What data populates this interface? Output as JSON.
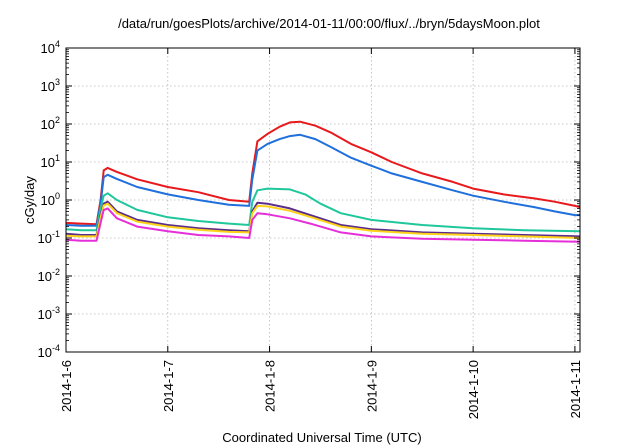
{
  "chart_data": {
    "type": "line",
    "title": "/data/run/goesPlots/archive/2014-01-11/00:00/flux/../bryn/5daysMoon.plot",
    "xlabel": "Coordinated Universal Time (UTC)",
    "ylabel": "cGy/day",
    "y_scale": "log",
    "ylim": [
      0.0001,
      10000
    ],
    "xlim": [
      0,
      5.05
    ],
    "x_ticks": [
      {
        "value": 0,
        "label": "2014-1-6"
      },
      {
        "value": 1,
        "label": "2014-1-7"
      },
      {
        "value": 2,
        "label": "2014-1-8"
      },
      {
        "value": 3,
        "label": "2014-1-9"
      },
      {
        "value": 4,
        "label": "2014-1-10"
      },
      {
        "value": 5,
        "label": "2014-1-11"
      }
    ],
    "y_ticks": [
      {
        "value": 0.0001,
        "base": "10",
        "exp": "-4"
      },
      {
        "value": 0.001,
        "base": "10",
        "exp": "-3"
      },
      {
        "value": 0.01,
        "base": "10",
        "exp": "-2"
      },
      {
        "value": 0.1,
        "base": "10",
        "exp": "-1"
      },
      {
        "value": 1,
        "base": "10",
        "exp": "0"
      },
      {
        "value": 10,
        "base": "10",
        "exp": "1"
      },
      {
        "value": 100,
        "base": "10",
        "exp": "2"
      },
      {
        "value": 1000,
        "base": "10",
        "exp": "3"
      },
      {
        "value": 10000,
        "base": "10",
        "exp": "4"
      }
    ],
    "grid": true,
    "legend": "none",
    "series": [
      {
        "color": "#e8191c",
        "x": [
          0,
          0.15,
          0.3,
          0.34,
          0.37,
          0.41,
          0.5,
          0.7,
          1.0,
          1.3,
          1.6,
          1.8,
          1.83,
          1.88,
          1.98,
          2.1,
          2.2,
          2.3,
          2.45,
          2.6,
          2.8,
          3.0,
          3.2,
          3.5,
          3.8,
          4.0,
          4.3,
          4.6,
          4.8,
          5.0,
          5.05
        ],
        "y": [
          0.25,
          0.24,
          0.23,
          1.0,
          6.0,
          7.0,
          5.5,
          3.5,
          2.2,
          1.6,
          1.0,
          0.9,
          5.0,
          35,
          55,
          85,
          110,
          115,
          90,
          60,
          30,
          18,
          10,
          5,
          3,
          2.0,
          1.4,
          1.1,
          0.9,
          0.7,
          0.65
        ]
      },
      {
        "color": "#1f6fdc",
        "x": [
          0,
          0.15,
          0.3,
          0.34,
          0.37,
          0.41,
          0.5,
          0.7,
          1.0,
          1.3,
          1.6,
          1.8,
          1.83,
          1.88,
          1.98,
          2.1,
          2.2,
          2.3,
          2.45,
          2.6,
          2.8,
          3.0,
          3.2,
          3.5,
          3.8,
          4.0,
          4.3,
          4.6,
          4.8,
          5.0,
          5.05
        ],
        "y": [
          0.22,
          0.21,
          0.21,
          0.8,
          4.0,
          4.6,
          3.6,
          2.2,
          1.4,
          1.0,
          0.75,
          0.7,
          3.5,
          20,
          30,
          40,
          48,
          52,
          40,
          25,
          13,
          8,
          5,
          3,
          1.8,
          1.3,
          0.9,
          0.65,
          0.5,
          0.4,
          0.4
        ]
      },
      {
        "color": "#1fc79b",
        "x": [
          0,
          0.15,
          0.3,
          0.34,
          0.37,
          0.41,
          0.5,
          0.7,
          1.0,
          1.3,
          1.6,
          1.8,
          1.83,
          1.88,
          1.98,
          2.2,
          2.35,
          2.5,
          2.7,
          3.0,
          3.5,
          4.0,
          4.5,
          5.05
        ],
        "y": [
          0.17,
          0.16,
          0.16,
          0.6,
          1.3,
          1.5,
          1.0,
          0.55,
          0.35,
          0.28,
          0.24,
          0.22,
          0.9,
          1.8,
          2.0,
          1.9,
          1.4,
          0.8,
          0.45,
          0.3,
          0.22,
          0.18,
          0.16,
          0.15
        ]
      },
      {
        "color": "#5a2d8a",
        "x": [
          0,
          0.15,
          0.3,
          0.34,
          0.37,
          0.41,
          0.5,
          0.7,
          1.0,
          1.3,
          1.6,
          1.8,
          1.83,
          1.88,
          1.98,
          2.2,
          2.4,
          2.7,
          3.0,
          3.5,
          4.0,
          4.5,
          5.05
        ],
        "y": [
          0.13,
          0.12,
          0.12,
          0.4,
          0.8,
          0.9,
          0.5,
          0.3,
          0.22,
          0.18,
          0.16,
          0.15,
          0.5,
          0.85,
          0.8,
          0.6,
          0.4,
          0.22,
          0.17,
          0.14,
          0.13,
          0.12,
          0.11
        ]
      },
      {
        "color": "#ffd21a",
        "x": [
          0,
          0.15,
          0.3,
          0.34,
          0.37,
          0.41,
          0.5,
          0.7,
          1.0,
          1.3,
          1.6,
          1.8,
          1.83,
          1.88,
          1.98,
          2.2,
          2.4,
          2.7,
          3.0,
          3.5,
          4.0,
          4.5,
          5.05
        ],
        "y": [
          0.115,
          0.11,
          0.11,
          0.35,
          0.72,
          0.8,
          0.45,
          0.27,
          0.2,
          0.165,
          0.145,
          0.14,
          0.45,
          0.7,
          0.68,
          0.52,
          0.36,
          0.2,
          0.155,
          0.13,
          0.12,
          0.11,
          0.1
        ]
      },
      {
        "color": "#e52fd9",
        "x": [
          0,
          0.15,
          0.3,
          0.34,
          0.37,
          0.41,
          0.5,
          0.7,
          1.0,
          1.3,
          1.6,
          1.8,
          1.83,
          1.88,
          1.98,
          2.2,
          2.4,
          2.7,
          3.0,
          3.5,
          4.0,
          4.5,
          5.05
        ],
        "y": [
          0.09,
          0.085,
          0.085,
          0.25,
          0.55,
          0.6,
          0.33,
          0.2,
          0.15,
          0.12,
          0.11,
          0.1,
          0.3,
          0.45,
          0.42,
          0.33,
          0.24,
          0.14,
          0.11,
          0.095,
          0.09,
          0.085,
          0.08
        ]
      }
    ]
  }
}
